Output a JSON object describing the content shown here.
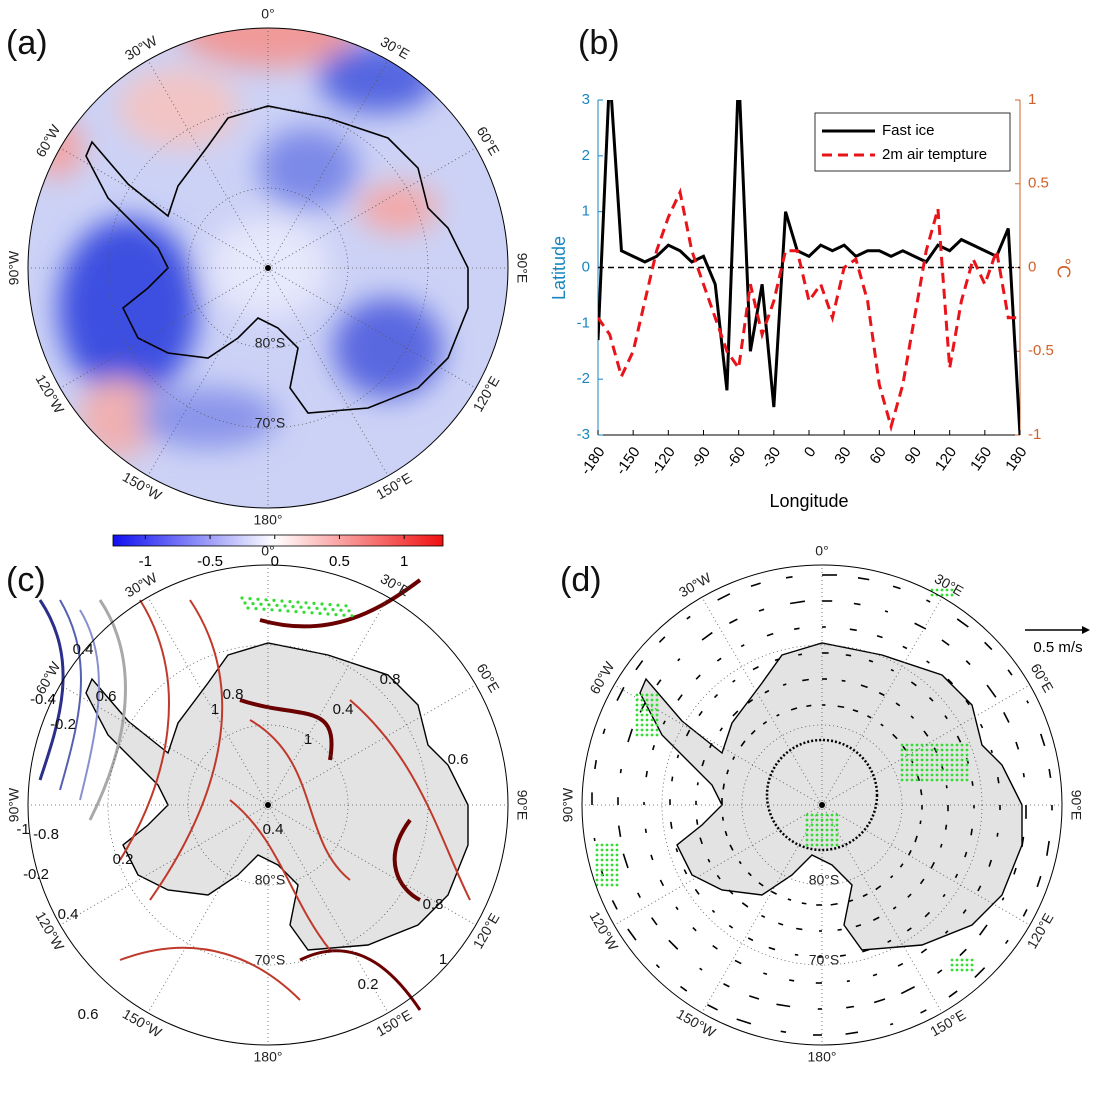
{
  "chart_data": [
    {
      "type": "map",
      "panel_label": "(a)",
      "lon_labels": [
        "0°",
        "30°E",
        "60°E",
        "90°E",
        "120°E",
        "150°E",
        "180°",
        "150°W",
        "120°W",
        "90°W",
        "60°W",
        "30°W"
      ],
      "lat_labels": [
        "80°S",
        "70°S"
      ],
      "colorbar": {
        "clim": [
          -1.25,
          1.3
        ],
        "ticks": [
          -1,
          -0.5,
          0,
          0.5,
          1
        ]
      }
    },
    {
      "type": "line",
      "panel_label": "(b)",
      "x": [
        -180,
        -170,
        -160,
        -150,
        -140,
        -130,
        -120,
        -110,
        -100,
        -90,
        -80,
        -70,
        -60,
        -50,
        -40,
        -30,
        -20,
        -10,
        0,
        10,
        20,
        30,
        40,
        50,
        60,
        70,
        80,
        90,
        100,
        110,
        120,
        130,
        140,
        150,
        160,
        170,
        180
      ],
      "series": [
        {
          "name": "Fast ice",
          "color": "#000000",
          "values": [
            -1.3,
            3.5,
            0.3,
            0.2,
            0.1,
            0.2,
            0.4,
            0.3,
            0.1,
            0.2,
            -0.3,
            -2.2,
            3.5,
            -1.5,
            -0.3,
            -2.5,
            1.0,
            0.3,
            0.2,
            0.4,
            0.3,
            0.4,
            0.2,
            0.3,
            0.3,
            0.2,
            0.3,
            0.2,
            0.1,
            0.4,
            0.3,
            0.5,
            0.4,
            0.3,
            0.2,
            0.7,
            -3
          ]
        },
        {
          "name": "2m air tempture",
          "color": "#e8141a",
          "axis": "y2",
          "dash": true,
          "values": [
            -0.3,
            -0.4,
            -0.65,
            -0.5,
            -0.2,
            0.1,
            0.3,
            0.45,
            0.1,
            -0.1,
            -0.3,
            -0.5,
            -0.6,
            -0.1,
            -0.4,
            -0.2,
            0.1,
            0.1,
            -0.2,
            -0.1,
            -0.3,
            0.0,
            0.05,
            -0.2,
            -0.7,
            -0.95,
            -0.7,
            -0.3,
            0.1,
            0.35,
            -0.6,
            -0.2,
            0.05,
            -0.1,
            0.1,
            -0.3,
            -0.3
          ]
        }
      ],
      "xlim": [
        -180,
        180
      ],
      "xticks": [
        -180,
        -150,
        -120,
        -90,
        -60,
        -30,
        0,
        30,
        60,
        90,
        120,
        150,
        180
      ],
      "ylim": [
        -3,
        3
      ],
      "yticks": [
        -3,
        -2,
        -1,
        0,
        1,
        2,
        3
      ],
      "y2lim": [
        -1,
        1
      ],
      "y2ticks": [
        -1,
        -0.5,
        0,
        0.5,
        1
      ],
      "xlabel": "Longitude",
      "ylabel": "Latitude",
      "y2label": "°C",
      "ycolor": "#1a86c0",
      "y2color": "#d0602a",
      "hline": 0
    },
    {
      "type": "map",
      "panel_label": "(c)",
      "lon_labels": [
        "0°",
        "30°E",
        "60°E",
        "90°E",
        "120°E",
        "150°E",
        "180°",
        "150°W",
        "120°W",
        "90°W",
        "60°W",
        "30°W"
      ],
      "lat_labels": [
        "80°S",
        "70°S"
      ],
      "contour_labels": [
        1,
        0.8,
        0.6,
        0.4,
        -0.4,
        -0.2,
        -1,
        -0.8,
        -0.2,
        0.2,
        0.4,
        0.6,
        0.8,
        1,
        0.6,
        0.8,
        1,
        0.4,
        0.2,
        0.4
      ]
    },
    {
      "type": "map",
      "panel_label": "(d)",
      "lon_labels": [
        "0°",
        "30°E",
        "60°E",
        "90°E",
        "120°E",
        "150°E",
        "180°",
        "150°W",
        "120°W",
        "90°W",
        "60°W",
        "30°W"
      ],
      "lat_labels": [
        "80°S",
        "70°S"
      ],
      "scale_label": "0.5 m/s"
    }
  ]
}
